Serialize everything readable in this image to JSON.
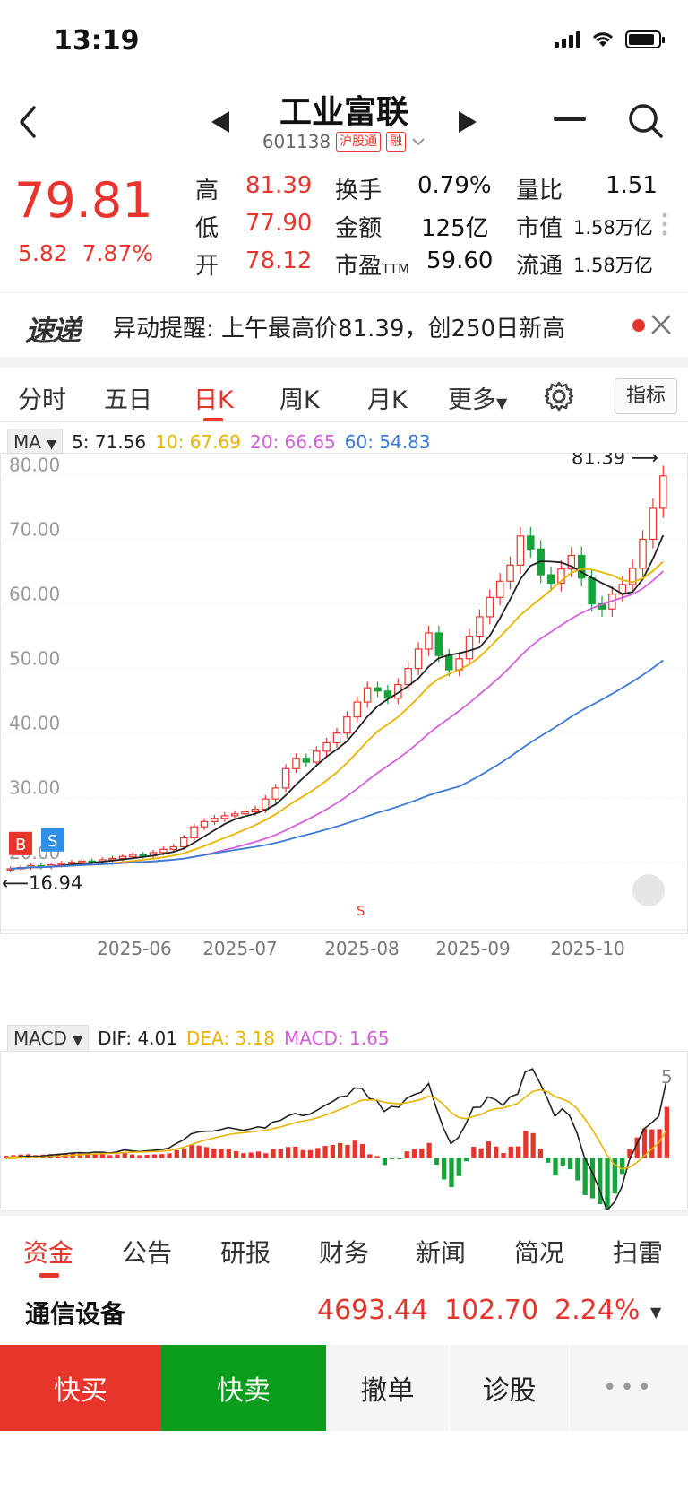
{
  "status": {
    "time": "13:19"
  },
  "header": {
    "title": "工业富联",
    "code": "601138",
    "tags": [
      "沪股通",
      "融"
    ]
  },
  "quote": {
    "price": "79.81",
    "change": "5.82",
    "change_pct": "7.87%",
    "rows": [
      [
        {
          "label": "高",
          "value": "81.39"
        },
        {
          "label": "换手",
          "value": "0.79%"
        },
        {
          "label": "量比",
          "value": "1.51"
        }
      ],
      [
        {
          "label": "低",
          "value": "77.90"
        },
        {
          "label": "金额",
          "value": "125亿"
        },
        {
          "label": "市值",
          "value": "1.58万亿"
        }
      ],
      [
        {
          "label": "开",
          "value": "78.12"
        },
        {
          "label": "市盈",
          "sub": "TTM",
          "value": "59.60"
        },
        {
          "label": "流通",
          "value": "1.58万亿"
        }
      ]
    ]
  },
  "alert": {
    "logo": "速递",
    "text": "异动提醒: 上午最高价81.39，创250日新高"
  },
  "period_tabs": [
    "分时",
    "五日",
    "日K",
    "周K",
    "月K",
    "更多"
  ],
  "active_period": "日K",
  "indicator_label": "指标",
  "ma_legend": {
    "label": "MA",
    "items": [
      {
        "text": "5: 71.56",
        "color": "#222222"
      },
      {
        "text": "10: 67.69",
        "color": "#e8b400"
      },
      {
        "text": "20: 66.65",
        "color": "#d35fd9"
      },
      {
        "text": "60: 54.83",
        "color": "#3a7bd5"
      }
    ]
  },
  "colors": {
    "up": "#e8352c",
    "down": "#15a33a",
    "ma5": "#222222",
    "ma10": "#e8b400",
    "ma20": "#d35fd9",
    "ma60": "#3a7bd5"
  },
  "chart_data": {
    "type": "candlestick",
    "y_ticks": [
      "80.00",
      "70.00",
      "60.00",
      "50.00",
      "40.00",
      "30.00",
      "20.00"
    ],
    "x_ticks": [
      "2025-06",
      "2025-07",
      "2025-08",
      "2025-09",
      "2025-10"
    ],
    "high_marker": "81.39",
    "low_marker": "16.94",
    "signals": [
      "B",
      "S",
      "S"
    ],
    "ylim": [
      14,
      82
    ],
    "close_trend": [
      19,
      19.2,
      19.5,
      19.3,
      19.6,
      19.8,
      20,
      20.2,
      20.1,
      20.4,
      20.6,
      20.9,
      21.2,
      21.0,
      21.5,
      22,
      22.4,
      23.8,
      25.5,
      26.3,
      26.8,
      27.2,
      27.5,
      27.8,
      28.2,
      29.8,
      31.5,
      34.5,
      36.1,
      35.5,
      37.2,
      38.5,
      40,
      42.5,
      44.8,
      47,
      46.5,
      45.4,
      47.5,
      50,
      53,
      55.5,
      52,
      49.8,
      51.5,
      55,
      58,
      61,
      63.5,
      66,
      70.5,
      68.5,
      64.5,
      63.2,
      65.4,
      67.5,
      64,
      60,
      59.2,
      61.5,
      63,
      65.5,
      70,
      74.8,
      79.81
    ],
    "macd": {
      "label": "MACD",
      "dif": "DIF: 4.01",
      "dea": "DEA: 3.18",
      "macd": "MACD: 1.65",
      "right_tick": "5"
    }
  },
  "bottom_tabs": [
    "资金",
    "公告",
    "研报",
    "财务",
    "新闻",
    "简况",
    "扫雷"
  ],
  "active_bottom_tab": "资金",
  "sector": {
    "name": "通信设备",
    "value": "4693.44",
    "change": "102.70",
    "pct": "2.24%"
  },
  "actions": {
    "buy": "快买",
    "sell": "快卖",
    "cancel": "撤单",
    "diagnose": "诊股",
    "more": "•••"
  }
}
